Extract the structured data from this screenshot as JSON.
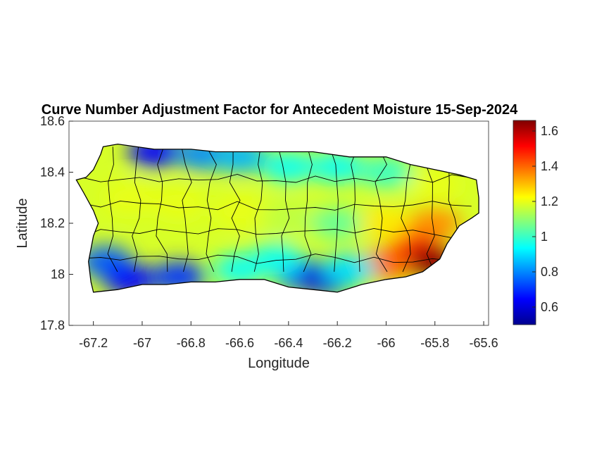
{
  "chart_data": {
    "type": "heatmap",
    "title": "Curve Number Adjustment Factor for Antecedent Moisture 15-Sep-2024",
    "xlabel": "Longitude",
    "ylabel": "Latitude",
    "xlim": [
      -67.3,
      -65.58
    ],
    "ylim": [
      17.8,
      18.6
    ],
    "xticks": [
      -67.2,
      -67,
      -66.8,
      -66.6,
      -66.4,
      -66.2,
      -66,
      -65.8,
      -65.6
    ],
    "xtick_labels": [
      "-67.2",
      "-67",
      "-66.8",
      "-66.6",
      "-66.4",
      "-66.2",
      "-66",
      "-65.8",
      "-65.6"
    ],
    "yticks": [
      17.8,
      18,
      18.2,
      18.4,
      18.6
    ],
    "ytick_labels": [
      "17.8",
      "18",
      "18.2",
      "18.4",
      "18.6"
    ],
    "colorbar": {
      "colormap": "jet",
      "clim": [
        0.5,
        1.66
      ],
      "ticks": [
        0.6,
        0.8,
        1,
        1.2,
        1.4,
        1.6
      ],
      "tick_labels": [
        "0.6",
        "0.8",
        "1",
        "1.2",
        "1.4",
        "1.6"
      ]
    },
    "island_outline": [
      [
        -67.27,
        18.37
      ],
      [
        -67.23,
        18.38
      ],
      [
        -67.2,
        18.41
      ],
      [
        -67.17,
        18.47
      ],
      [
        -67.16,
        18.5
      ],
      [
        -67.1,
        18.51
      ],
      [
        -66.95,
        18.49
      ],
      [
        -66.8,
        18.49
      ],
      [
        -66.7,
        18.48
      ],
      [
        -66.5,
        18.48
      ],
      [
        -66.3,
        18.48
      ],
      [
        -66.15,
        18.46
      ],
      [
        -66.0,
        18.46
      ],
      [
        -65.9,
        18.43
      ],
      [
        -65.8,
        18.41
      ],
      [
        -65.7,
        18.39
      ],
      [
        -65.63,
        18.37
      ],
      [
        -65.62,
        18.3
      ],
      [
        -65.62,
        18.24
      ],
      [
        -65.65,
        18.22
      ],
      [
        -65.7,
        18.19
      ],
      [
        -65.75,
        18.12
      ],
      [
        -65.78,
        18.06
      ],
      [
        -65.85,
        18.01
      ],
      [
        -65.92,
        17.99
      ],
      [
        -66.0,
        17.98
      ],
      [
        -66.1,
        17.96
      ],
      [
        -66.2,
        17.93
      ],
      [
        -66.3,
        17.94
      ],
      [
        -66.4,
        17.95
      ],
      [
        -66.5,
        17.98
      ],
      [
        -66.6,
        17.98
      ],
      [
        -66.7,
        17.97
      ],
      [
        -66.8,
        17.97
      ],
      [
        -66.9,
        17.96
      ],
      [
        -67.0,
        17.96
      ],
      [
        -67.1,
        17.94
      ],
      [
        -67.2,
        17.93
      ],
      [
        -67.21,
        17.97
      ],
      [
        -67.22,
        18.05
      ],
      [
        -67.2,
        18.15
      ],
      [
        -67.18,
        18.2
      ],
      [
        -67.2,
        18.25
      ],
      [
        -67.24,
        18.32
      ],
      [
        -67.27,
        18.37
      ]
    ],
    "value_regions": [
      {
        "lon": -66.95,
        "lat": 18.48,
        "value": 0.65,
        "description": "blue along north coast west"
      },
      {
        "lon": -66.75,
        "lat": 18.47,
        "value": 0.8
      },
      {
        "lon": -66.6,
        "lat": 18.46,
        "value": 0.85
      },
      {
        "lon": -66.4,
        "lat": 18.42,
        "value": 0.95
      },
      {
        "lon": -66.2,
        "lat": 18.42,
        "value": 0.95
      },
      {
        "lon": -66.0,
        "lat": 18.4,
        "value": 1.0
      },
      {
        "lon": -65.8,
        "lat": 18.35,
        "value": 1.2
      },
      {
        "lon": -67.05,
        "lat": 18.3,
        "value": 1.2
      },
      {
        "lon": -66.85,
        "lat": 18.28,
        "value": 1.2
      },
      {
        "lon": -66.6,
        "lat": 18.25,
        "value": 1.2
      },
      {
        "lon": -66.4,
        "lat": 18.22,
        "value": 1.15
      },
      {
        "lon": -66.2,
        "lat": 18.2,
        "value": 1.05
      },
      {
        "lon": -66.0,
        "lat": 18.2,
        "value": 1.25
      },
      {
        "lon": -65.8,
        "lat": 18.2,
        "value": 1.35
      },
      {
        "lon": -65.88,
        "lat": 18.1,
        "value": 1.5
      },
      {
        "lon": -65.82,
        "lat": 18.05,
        "value": 1.65
      },
      {
        "lon": -66.0,
        "lat": 18.04,
        "value": 1.4
      },
      {
        "lon": -67.15,
        "lat": 18.05,
        "value": 0.75
      },
      {
        "lon": -67.05,
        "lat": 17.98,
        "value": 0.65
      },
      {
        "lon": -66.85,
        "lat": 17.99,
        "value": 0.7
      },
      {
        "lon": -66.6,
        "lat": 18.02,
        "value": 0.95
      },
      {
        "lon": -66.35,
        "lat": 18.0,
        "value": 0.75
      },
      {
        "lon": -66.25,
        "lat": 17.98,
        "value": 0.6
      },
      {
        "lon": -66.15,
        "lat": 18.02,
        "value": 0.9
      },
      {
        "lon": -66.45,
        "lat": 18.06,
        "value": 0.95
      }
    ],
    "grid": false,
    "legend": "colorbar right"
  }
}
